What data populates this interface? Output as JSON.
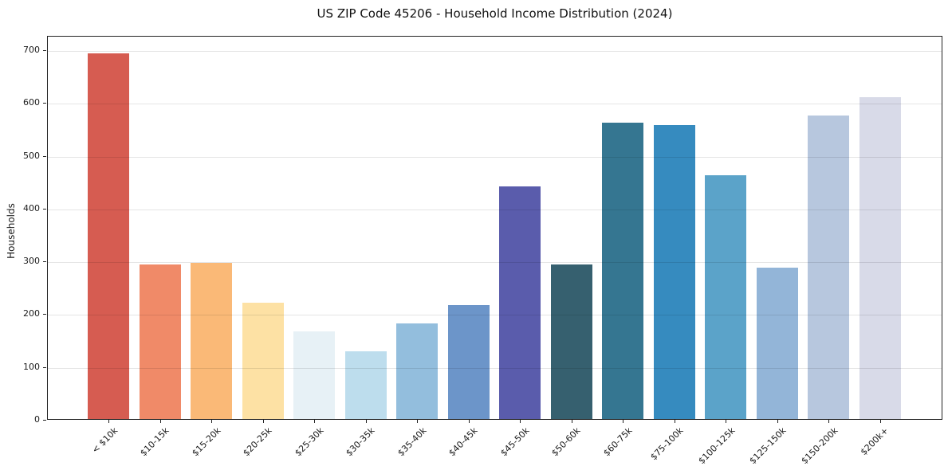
{
  "figure": {
    "background_color": "#ffffff",
    "grid_color": "#e6e6e6",
    "text_color": "#1a1a1a"
  },
  "chart_data": {
    "type": "bar",
    "title": "US ZIP Code 45206 - Household Income Distribution (2024)",
    "xlabel": "",
    "ylabel": "Households",
    "ylim": [
      0,
      727
    ],
    "yticks": [
      0,
      100,
      200,
      300,
      400,
      500,
      600,
      700
    ],
    "grid": "horizontal",
    "legend_position": "none",
    "categories": [
      "< $10k",
      "$10-15k",
      "$15-20k",
      "$20-25k",
      "$25-30k",
      "$30-35k",
      "$35-40k",
      "$40-45k",
      "$45-50k",
      "$50-60k",
      "$60-75k",
      "$75-100k",
      "$100-125k",
      "$125-150k",
      "$150-200k",
      "$200k+"
    ],
    "values": [
      693,
      292,
      295,
      220,
      166,
      128,
      181,
      216,
      440,
      293,
      561,
      556,
      461,
      287,
      574,
      610
    ],
    "bar_colors": [
      "#d65c51",
      "#f08a68",
      "#fab977",
      "#fde1a4",
      "#e7f1f6",
      "#bddded",
      "#93bedd",
      "#6c95c9",
      "#5a5cac",
      "#36606f",
      "#357691",
      "#368bbf",
      "#5ba3c9",
      "#93b5d8",
      "#b7c7de",
      "#d8dae8"
    ]
  }
}
